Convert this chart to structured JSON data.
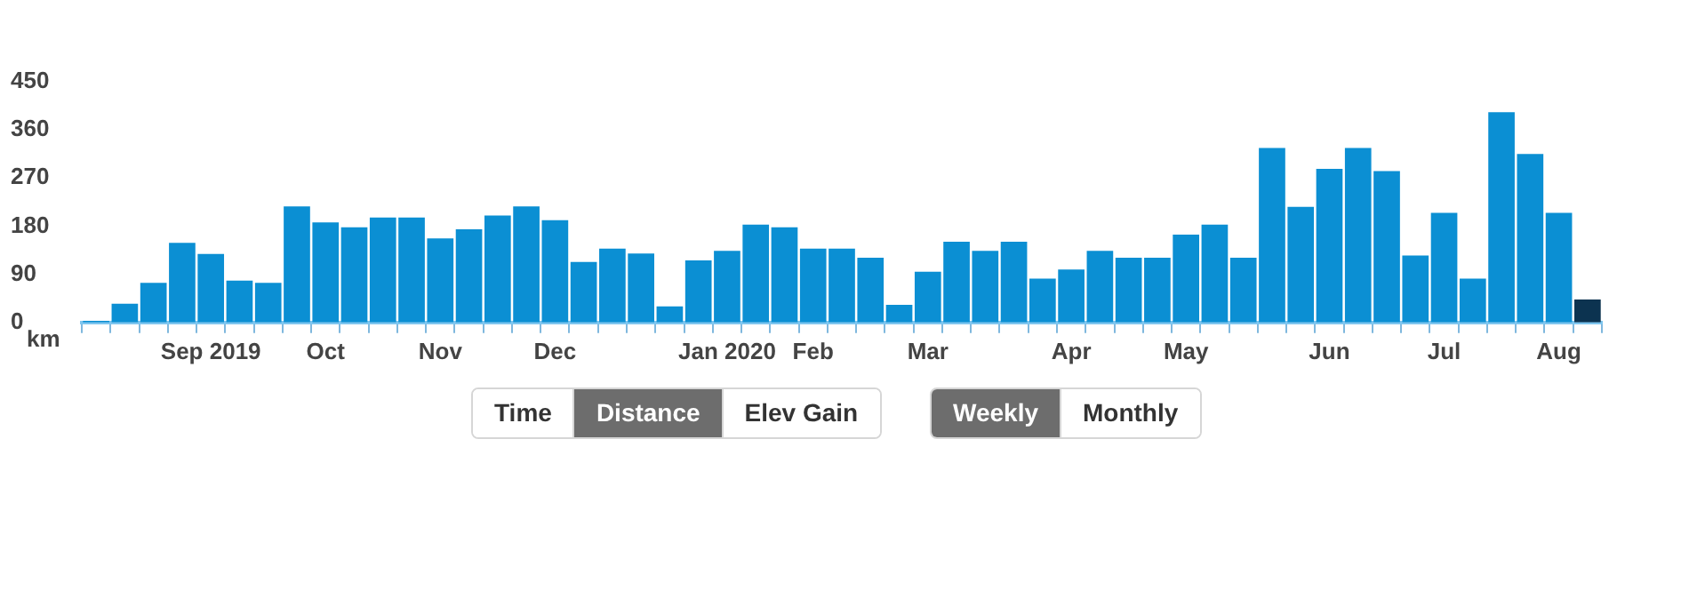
{
  "chart_data": {
    "type": "bar",
    "ylabel": "km",
    "categories": [
      null,
      null,
      null,
      null,
      "Sep 2019",
      null,
      null,
      null,
      "Oct",
      null,
      null,
      null,
      "Nov",
      null,
      null,
      null,
      "Dec",
      null,
      null,
      null,
      null,
      null,
      "Jan 2020",
      null,
      null,
      "Feb",
      null,
      null,
      null,
      "Mar",
      null,
      null,
      null,
      null,
      "Apr",
      null,
      null,
      null,
      "May",
      null,
      null,
      null,
      null,
      "Jun",
      null,
      null,
      null,
      "Jul",
      null,
      null,
      null,
      "Aug",
      null
    ],
    "values": [
      3,
      35,
      74,
      149,
      128,
      78,
      74,
      217,
      187,
      178,
      196,
      196,
      157,
      174,
      200,
      217,
      191,
      113,
      138,
      129,
      30,
      116,
      134,
      183,
      178,
      138,
      138,
      121,
      33,
      95,
      151,
      134,
      151,
      82,
      99,
      134,
      121,
      121,
      164,
      183,
      121,
      326,
      216,
      287,
      326,
      283,
      125,
      205,
      82,
      393,
      315,
      205,
      43
    ],
    "colors": [
      "#0b8fd3",
      "#0b8fd3",
      "#0b8fd3",
      "#0b8fd3",
      "#0b8fd3",
      "#0b8fd3",
      "#0b8fd3",
      "#0b8fd3",
      "#0b8fd3",
      "#0b8fd3",
      "#0b8fd3",
      "#0b8fd3",
      "#0b8fd3",
      "#0b8fd3",
      "#0b8fd3",
      "#0b8fd3",
      "#0b8fd3",
      "#0b8fd3",
      "#0b8fd3",
      "#0b8fd3",
      "#0b8fd3",
      "#0b8fd3",
      "#0b8fd3",
      "#0b8fd3",
      "#0b8fd3",
      "#0b8fd3",
      "#0b8fd3",
      "#0b8fd3",
      "#0b8fd3",
      "#0b8fd3",
      "#0b8fd3",
      "#0b8fd3",
      "#0b8fd3",
      "#0b8fd3",
      "#0b8fd3",
      "#0b8fd3",
      "#0b8fd3",
      "#0b8fd3",
      "#0b8fd3",
      "#0b8fd3",
      "#0b8fd3",
      "#0b8fd3",
      "#0b8fd3",
      "#0b8fd3",
      "#0b8fd3",
      "#0b8fd3",
      "#0b8fd3",
      "#0b8fd3",
      "#0b8fd3",
      "#0b8fd3",
      "#0b8fd3",
      "#0b8fd3",
      "#0c3350"
    ],
    "ylim": [
      0,
      450
    ],
    "yticks": [
      0,
      90,
      180,
      270,
      360,
      450
    ],
    "grid": false,
    "legend": false,
    "annotations": [
      "Time",
      "Distance",
      "Elev Gain",
      "Weekly",
      "Monthly"
    ]
  }
}
